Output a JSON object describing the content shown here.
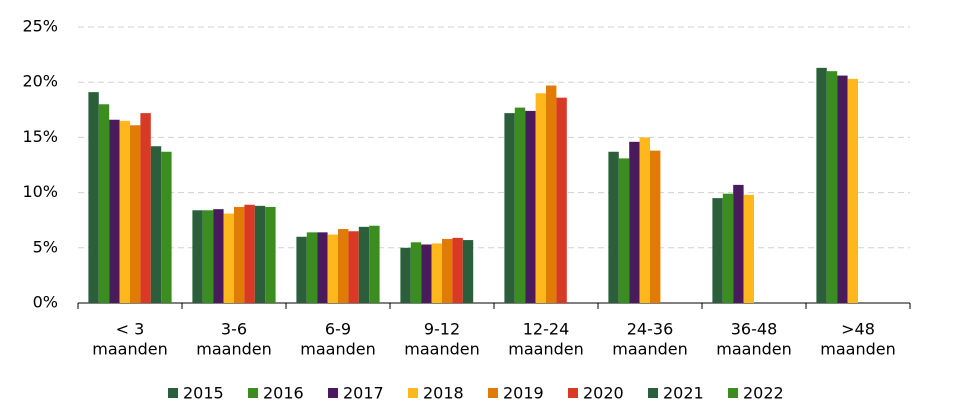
{
  "chart_data": {
    "type": "bar",
    "categories": [
      [
        "< 3",
        "maanden"
      ],
      [
        "3-6",
        "maanden"
      ],
      [
        "6-9",
        "maanden"
      ],
      [
        "9-12",
        "maanden"
      ],
      [
        "12-24",
        "maanden"
      ],
      [
        "24-36",
        "maanden"
      ],
      [
        "36-48",
        "maanden"
      ],
      [
        ">48",
        "maanden"
      ]
    ],
    "series": [
      {
        "name": "2015",
        "color": "#2b5f3b",
        "values": [
          19.1,
          8.4,
          6.0,
          5.0,
          17.2,
          13.7,
          9.5,
          21.3
        ]
      },
      {
        "name": "2016",
        "color": "#3b8d1f",
        "values": [
          18.0,
          8.4,
          6.4,
          5.5,
          17.7,
          13.1,
          9.9,
          21.0
        ]
      },
      {
        "name": "2017",
        "color": "#4a1a5e",
        "values": [
          16.6,
          8.5,
          6.4,
          5.3,
          17.4,
          14.6,
          10.7,
          20.6
        ]
      },
      {
        "name": "2018",
        "color": "#ffb81c",
        "values": [
          16.5,
          8.1,
          6.2,
          5.4,
          19.0,
          15.0,
          9.8,
          20.3
        ]
      },
      {
        "name": "2019",
        "color": "#e07b0a",
        "values": [
          16.1,
          8.7,
          6.7,
          5.8,
          19.7,
          13.8,
          null,
          null
        ]
      },
      {
        "name": "2020",
        "color": "#d93a26",
        "values": [
          17.2,
          8.9,
          6.5,
          5.9,
          18.6,
          null,
          null,
          null
        ]
      },
      {
        "name": "2021",
        "color": "#2b5f3b",
        "values": [
          14.2,
          8.8,
          6.9,
          5.7,
          null,
          null,
          null,
          null
        ]
      },
      {
        "name": "2022",
        "color": "#3b8d1f",
        "values": [
          13.7,
          8.7,
          7.0,
          null,
          null,
          null,
          null,
          null
        ]
      }
    ],
    "ylim": [
      0,
      25
    ],
    "yticks": [
      {
        "value": 0,
        "label": "0%"
      },
      {
        "value": 5,
        "label": "5%"
      },
      {
        "value": 10,
        "label": "10%"
      },
      {
        "value": 15,
        "label": "15%"
      },
      {
        "value": 20,
        "label": "20%"
      },
      {
        "value": 25,
        "label": "25%"
      }
    ],
    "grid": true
  }
}
